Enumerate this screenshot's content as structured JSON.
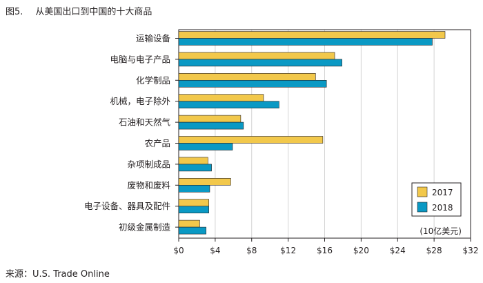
{
  "figure": {
    "number": "图5.",
    "caption": "从美国出口到中国的十大商品"
  },
  "source": "来源：U.S. Trade Online",
  "chart_data": {
    "type": "bar",
    "orientation": "horizontal",
    "categories": [
      "运输设备",
      "电脑与电子产品",
      "化学制品",
      "机械，电子除外",
      "石油和天然气",
      "农产品",
      "杂项制成品",
      "废物和废料",
      "电子设备、器具及配件",
      "初级金属制造"
    ],
    "series": [
      {
        "name": "2017",
        "color": "#f2c84b",
        "values": [
          29.2,
          17.1,
          15.0,
          9.3,
          6.8,
          15.8,
          3.2,
          5.7,
          3.3,
          2.3
        ]
      },
      {
        "name": "2018",
        "color": "#0a99c4",
        "values": [
          27.8,
          17.9,
          16.2,
          11.0,
          7.1,
          5.9,
          3.6,
          3.4,
          3.3,
          3.0
        ]
      }
    ],
    "xlim": [
      0,
      32
    ],
    "xticks": [
      0,
      4,
      8,
      12,
      16,
      20,
      24,
      28,
      32
    ],
    "xtick_labels": [
      "$0",
      "$4",
      "$8",
      "$12",
      "$16",
      "$20",
      "$24",
      "$28",
      "$32"
    ],
    "unit_label": "(10亿美元)",
    "grid": "vertical",
    "legend_position": "bottom-right"
  }
}
